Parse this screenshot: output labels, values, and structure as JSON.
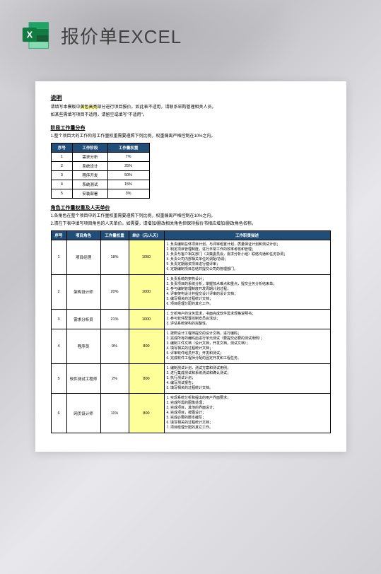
{
  "header": {
    "title": "报价单EXCEL",
    "icon_color_dark": "#185c37",
    "icon_color_light": "#21a366",
    "icon_letter": "X"
  },
  "doc": {
    "bg": "#ffffff",
    "section1_title": "说明",
    "section1_line1a": "请填写本模板中",
    "section1_line1b": "黄色高亮",
    "section1_line1c": "部分进行项目报价。如此表不适用，请联系采购管理相关人员。",
    "section1_line2": "如某些需填写项目不适用，请留空或填写\"不适用\"。",
    "section2_title": "阶段工作量分布",
    "section2_note": "1.整个项目大的工作阶段工作量权重需要遵照下列比例，权重偏离严格控制在10%之内。",
    "table1": {
      "headers": [
        "序号",
        "工作阶段",
        "工作量权重"
      ],
      "rows": [
        [
          "1",
          "需求分析",
          "7%"
        ],
        [
          "2",
          "系统设计",
          "25%"
        ],
        [
          "3",
          "程序开发",
          "50%"
        ],
        [
          "4",
          "系统测试",
          "15%"
        ],
        [
          "5",
          "安装部署",
          "3%"
        ]
      ],
      "header_bg": "#1f4e79",
      "header_color": "#ffffff"
    },
    "section3_title": "角色工作量权重及人天单价",
    "section3_note1": "1.各角色在整个项目中的工作量权重需要遵照下列比例，权重偏离严格控制在10%之内。",
    "section3_note2": "2.清在下表中填写项目角色的人天单价。如需要，请增加/删改相关角色但保持报价书相应增加/删改角色名称。",
    "table2": {
      "headers": [
        "序号",
        "项目角色",
        "工作量权重",
        "单价（元/人天）",
        "工作职责描述"
      ],
      "header_bg": "#1f4e79",
      "rows": [
        {
          "no": "1",
          "role": "项目经理",
          "weight": "18%",
          "price": "1050",
          "duties": [
            "1. 负责编制总体项目计划，与评审组置计划，质量保证计划和测试计划；",
            "2. 制定项目管理制度，进行日常工作的效率考核和管理；",
            "3. 负责与客户相关部门（决策委员会，需求分析小组）联络沟通和任务协调；",
            "4. 负责公司内部相关单位的调配/协调；",
            "5. 负责定期融资项目进行健评审；",
            "6. 定期编制项目总结并提交公司的管理部门。"
          ]
        },
        {
          "no": "2",
          "role": "架构设计师",
          "weight": "20%",
          "price": "1000",
          "duties": [
            "1. 负责系统的架构设计；",
            "2. 负责项目的系统分析，掌握技术难点和重点，提交业务分析结束单；",
            "3. 参与编制管理制度开发周期计划过程；",
            "4. 评审架构设计并提交设计评审的设计文档；",
            "5. 编写相关的过程统计文档；",
            "6. 项目经理分配的其它工作。"
          ]
        },
        {
          "no": "3",
          "role": "需求分析员",
          "weight": "21%",
          "price": "1000",
          "duties": [
            "1. 分析用户的业务需求，书面完成软件需求规格说明书；",
            "2. 参与软件配置控制安员会活动；",
            "3. 评估系统架构的完整性。"
          ]
        },
        {
          "no": "4",
          "role": "程序员",
          "weight": "9%",
          "price": "800",
          "duties": [
            "1. 按照设计工程师提交的设计文档，进行编码；",
            "2. 完成所有的编码后进行单元测试（要提交必要的测试用例）；",
            "3. 编制工件文档（设计文档，开发文档，测试文档）；",
            "4. 填写相关的过程统计文档；",
            "5. 评审软件组员开发；开发和测试；",
            "6. 完成软件工程师分配的固定开发和工程任务。"
          ]
        },
        {
          "no": "5",
          "role": "软件测试工程师",
          "weight": "2%",
          "price": "800",
          "duties": [
            "1. 编制测试计划，测试方案和测试用例；",
            "2. 进行集成测试和系统测试和确认测试；",
            "3. 执行测试计划；",
            "4. 编写测试报告；",
            "5. 填写相关的过程统计文档。"
          ]
        },
        {
          "no": "6",
          "role": "网页设计师",
          "weight": "11%",
          "price": "800",
          "duties": [
            "1. 实现系统分析和提出的用户界面要求；",
            "2. 完成所需的图像处理；",
            "3. 完成项目，其他的界面设计；",
            "4. 完成项目，按图设计；",
            "5. 完成必要的脚本编写；",
            "6. 填写相关的过程统计文档；",
            "7. 项目经理分配的其它工作。"
          ]
        }
      ]
    }
  }
}
